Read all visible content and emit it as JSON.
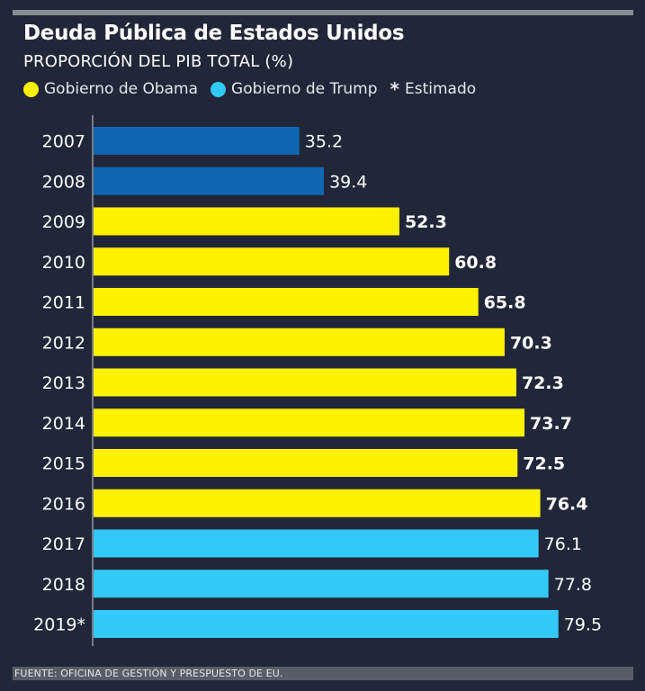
{
  "header": {
    "title": "Deuda Pública de Estados Unidos",
    "subtitle": "PROPORCIÓN DEL PIB TOTAL (%)"
  },
  "legend": {
    "obama": "Gobierno de Obama",
    "trump": "Gobierno de Trump",
    "estimate_symbol": "*",
    "estimate": "Estimado"
  },
  "colors": {
    "pre_obama": "#0f67b1",
    "obama": "#fff200",
    "trump": "#33c9f6",
    "background": "#222639"
  },
  "chart_data": {
    "type": "bar",
    "orientation": "horizontal",
    "title": "Deuda Pública de Estados Unidos",
    "subtitle": "PROPORCIÓN DEL PIB TOTAL (%)",
    "xlabel": "",
    "ylabel": "",
    "xlim": [
      0,
      85
    ],
    "categories": [
      "2007",
      "2008",
      "2009",
      "2010",
      "2011",
      "2012",
      "2013",
      "2014",
      "2015",
      "2016",
      "2017",
      "2018",
      "2019*"
    ],
    "values": [
      35.2,
      39.4,
      52.3,
      60.8,
      65.8,
      70.3,
      72.3,
      73.7,
      72.5,
      76.4,
      76.1,
      77.8,
      79.5
    ],
    "value_labels": [
      "35.2",
      "39.4",
      "52.3",
      "60.8",
      "65.8",
      "70.3",
      "72.3",
      "73.7",
      "72.5",
      "76.4",
      "76.1",
      "77.8",
      "79.5"
    ],
    "groups": [
      "pre_obama",
      "pre_obama",
      "obama",
      "obama",
      "obama",
      "obama",
      "obama",
      "obama",
      "obama",
      "obama",
      "trump",
      "trump",
      "trump"
    ]
  },
  "footer": {
    "source": "FUENTE: OFICINA DE GESTIÓN Y PRESPUESTO DE EU."
  }
}
